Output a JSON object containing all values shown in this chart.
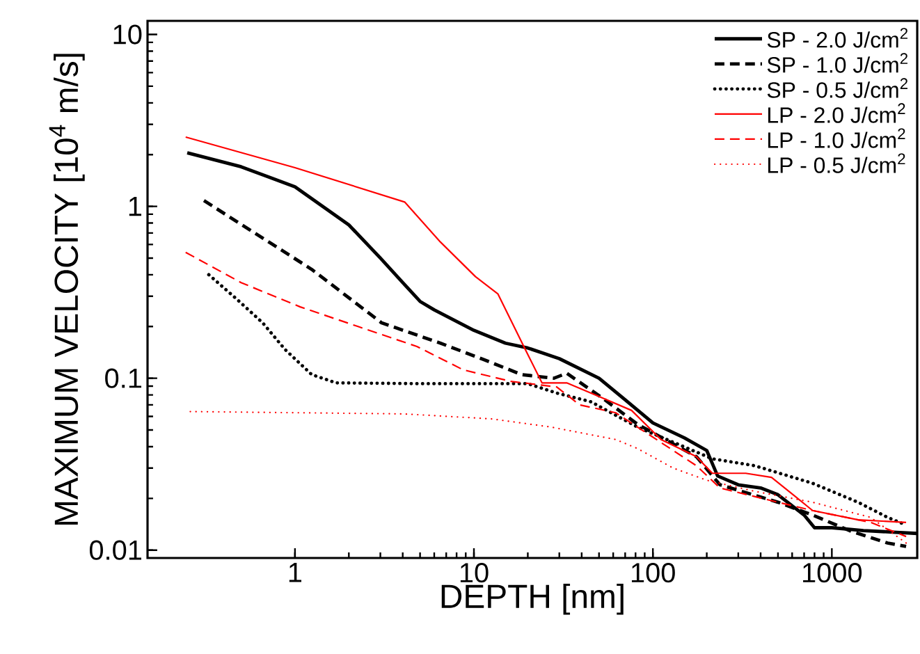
{
  "chart_data": {
    "type": "line",
    "xlabel": "DEPTH [nm]",
    "ylabel": "MAXIMUM VELOCITY [10$^{4}$ m/s]",
    "log": "xy",
    "xlim": [
      0.15,
      3000
    ],
    "ylim": [
      0.009,
      12
    ],
    "xticks": [
      1,
      10,
      100,
      1000
    ],
    "yticks": [
      0.01,
      0.1,
      1,
      10
    ],
    "legend": "top right",
    "series": [
      {
        "name": "SP - 2.0 J/cm$^{2}$",
        "color": "#000000",
        "line_style": "solid",
        "x": [
          0.25,
          0.5,
          1,
          2,
          3,
          4,
          5,
          6,
          10,
          15,
          20,
          30,
          50,
          70,
          100,
          150,
          200,
          230,
          300,
          400,
          500,
          700,
          800,
          1000,
          1500,
          3000
        ],
        "values": [
          2.05,
          1.7,
          1.3,
          0.78,
          0.5,
          0.36,
          0.28,
          0.25,
          0.19,
          0.16,
          0.15,
          0.13,
          0.1,
          0.075,
          0.055,
          0.045,
          0.038,
          0.027,
          0.024,
          0.023,
          0.021,
          0.016,
          0.0135,
          0.0135,
          0.013,
          0.0125
        ]
      },
      {
        "name": "SP - 1.0 J/cm$^{2}$",
        "color": "#000000",
        "line_style": "dashed",
        "x": [
          0.31,
          1.24,
          3.05,
          6.5,
          11,
          18.5,
          28,
          33,
          52,
          82,
          175,
          237,
          500,
          780,
          1300,
          2050,
          2600
        ],
        "values": [
          1.08,
          0.43,
          0.21,
          0.16,
          0.13,
          0.105,
          0.1,
          0.107,
          0.077,
          0.054,
          0.035,
          0.024,
          0.019,
          0.016,
          0.0128,
          0.011,
          0.0105
        ]
      },
      {
        "name": "SP - 0.5 J/cm$^{2}$",
        "color": "#000000",
        "line_style": "dotted",
        "x": [
          0.33,
          0.47,
          0.66,
          0.88,
          1.24,
          1.7,
          5,
          20,
          29,
          45,
          82,
          215,
          370,
          780,
          1400,
          2050,
          2600
        ],
        "values": [
          0.4,
          0.29,
          0.21,
          0.147,
          0.105,
          0.094,
          0.093,
          0.093,
          0.082,
          0.073,
          0.052,
          0.034,
          0.031,
          0.0245,
          0.019,
          0.0155,
          0.014
        ]
      },
      {
        "name": "LP - 2.0 J/cm$^{2}$",
        "color": "#ff0000",
        "line_style": "solid",
        "x": [
          0.245,
          1,
          4.1,
          6.5,
          10.2,
          13.6,
          19,
          24,
          33,
          52,
          76,
          111,
          175,
          215,
          330,
          460,
          625,
          780,
          1400,
          2600
        ],
        "values": [
          2.53,
          1.68,
          1.06,
          0.62,
          0.39,
          0.31,
          0.153,
          0.094,
          0.094,
          0.077,
          0.065,
          0.044,
          0.035,
          0.028,
          0.028,
          0.0265,
          0.0205,
          0.017,
          0.015,
          0.0145
        ]
      },
      {
        "name": "LP - 1.0 J/cm$^{2}$",
        "color": "#ff0000",
        "line_style": "dashed",
        "x": [
          0.245,
          0.5,
          1.07,
          2.25,
          4.8,
          8.7,
          16,
          29,
          39,
          62,
          82,
          175,
          237,
          370,
          780,
          1650,
          2600
        ],
        "values": [
          0.54,
          0.36,
          0.26,
          0.2,
          0.153,
          0.112,
          0.096,
          0.089,
          0.07,
          0.063,
          0.052,
          0.031,
          0.023,
          0.0205,
          0.017,
          0.0145,
          0.012
        ]
      },
      {
        "name": "LP - 0.5 J/cm$^{2}$",
        "color": "#ff0000",
        "line_style": "dotted",
        "x": [
          0.26,
          4.1,
          12.6,
          27,
          62,
          82,
          130,
          200,
          370,
          780,
          1650,
          2600
        ],
        "values": [
          0.064,
          0.062,
          0.058,
          0.052,
          0.044,
          0.039,
          0.03,
          0.0255,
          0.022,
          0.019,
          0.0155,
          0.011
        ]
      }
    ]
  }
}
